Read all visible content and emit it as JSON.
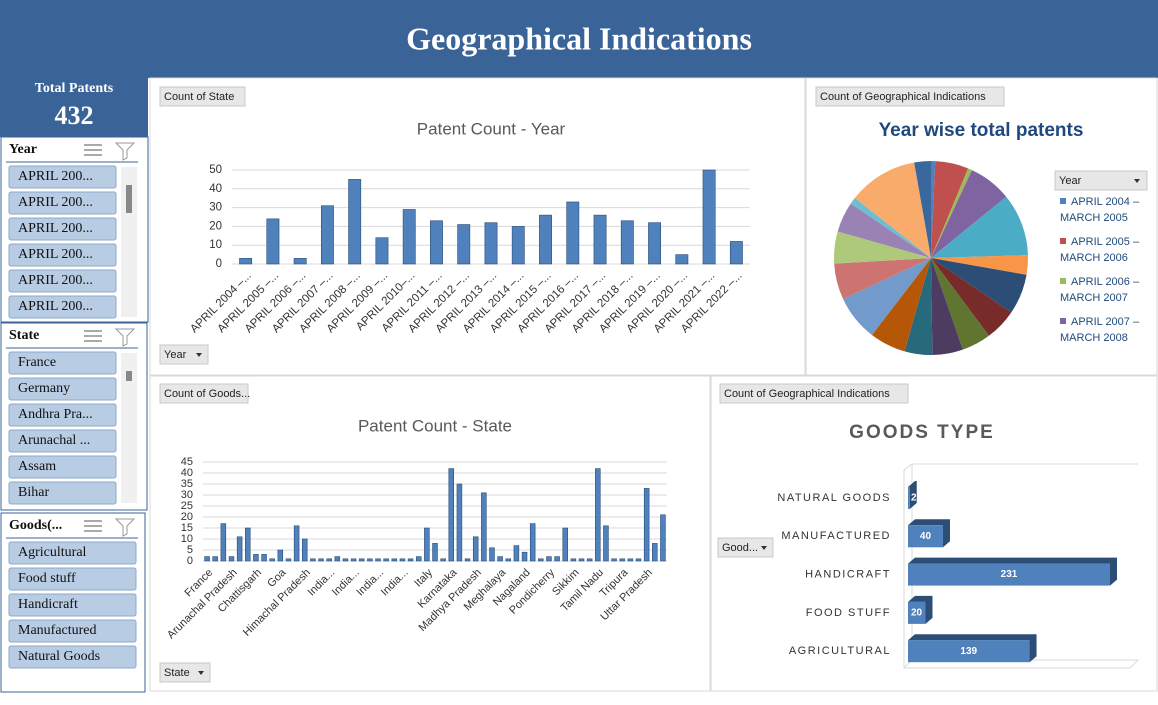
{
  "header": {
    "title": "Geographical Indications"
  },
  "kpi": {
    "label": "Total Patents",
    "value": 432
  },
  "slicers": [
    {
      "title": "Year",
      "items": [
        "APRIL 200...",
        "APRIL 200...",
        "APRIL 200...",
        "APRIL 200...",
        "APRIL 200...",
        "APRIL 200..."
      ]
    },
    {
      "title": "State",
      "items": [
        "France",
        "Germany",
        "Andhra Pra...",
        "Arunachal ...",
        "Assam",
        "Bihar"
      ]
    },
    {
      "title": "Goods(...",
      "items": [
        "Agricultural",
        "Food stuff",
        "Handicraft",
        "Manufactured",
        "Natural Goods"
      ]
    }
  ],
  "chart_data": [
    {
      "type": "bar",
      "button": "Count of State",
      "field_button": "Year",
      "title": "Patent Count - Year",
      "categories": [
        "APRIL 2004 –...",
        "APRIL 2005 –...",
        "APRIL 2006 –...",
        "APRIL 2007 –...",
        "APRIL 2008 –...",
        "APRIL 2009 –...",
        "APRIL 2010–...",
        "APRIL 2011 –...",
        "APRIL 2012 –...",
        "APRIL 2013 –...",
        "APRIL 2014 –...",
        "APRIL 2015 –...",
        "APRIL 2016 –...",
        "APRIL 2017 –...",
        "APRIL 2018 –...",
        "APRIL 2019 –...",
        "APRIL 2020 –...",
        "APRIL 2021 –...",
        "APRIL 2022 –..."
      ],
      "values": [
        3,
        24,
        3,
        31,
        45,
        14,
        29,
        23,
        21,
        22,
        20,
        26,
        33,
        26,
        23,
        22,
        5,
        50,
        12
      ],
      "color": "#4f81bd",
      "ylim": [
        0,
        50
      ],
      "yticks": [
        0,
        10,
        20,
        30,
        40,
        50
      ],
      "grid": true
    },
    {
      "type": "pie",
      "button": "Count of Geographical Indications",
      "title": "Year wise total patents",
      "legend_title": "Year",
      "values": [
        3,
        24,
        3,
        31,
        45,
        14,
        29,
        23,
        21,
        22,
        20,
        26,
        33,
        26,
        23,
        22,
        5,
        50,
        12
      ],
      "colors": [
        "#4f81bd",
        "#c0504d",
        "#9bbb59",
        "#8064a2",
        "#4bacc6",
        "#f79646",
        "#2c4d75",
        "#772c2a",
        "#5f7530",
        "#4d3b62",
        "#276a7c",
        "#b65708",
        "#729aca",
        "#cd7371",
        "#afc97a",
        "#9983b5",
        "#6fbdd1",
        "#f9ab6b",
        "#3a679c"
      ],
      "legend": [
        {
          "label": "APRIL 2004 – MARCH 2005",
          "color": "#4f81bd"
        },
        {
          "label": "APRIL 2005 – MARCH 2006",
          "color": "#c0504d"
        },
        {
          "label": "APRIL 2006 – MARCH 2007",
          "color": "#9bbb59"
        },
        {
          "label": "APRIL 2007 – MARCH 2008",
          "color": "#8064a2"
        }
      ]
    },
    {
      "type": "bar",
      "button": "Count of Goods...",
      "field_button": "State",
      "title": "Patent Count - State",
      "categories": [
        "France",
        null,
        null,
        "Arunachal Pradesh",
        null,
        null,
        "Chattisgarh",
        null,
        null,
        "Goa",
        null,
        null,
        "Himachal Pradesh",
        null,
        null,
        "India...",
        null,
        null,
        "India...",
        null,
        null,
        "India...",
        null,
        null,
        "India...",
        null,
        null,
        "Italy",
        null,
        null,
        "Karnataka",
        null,
        null,
        "Madhya Pradesh",
        null,
        null,
        "Meghalaya",
        null,
        null,
        "Nagaland",
        null,
        null,
        "Pondicherry",
        null,
        null,
        "Sikkim",
        null,
        null,
        "Tamil Nadu",
        null,
        null,
        "Tripura",
        null,
        null,
        "Uttar Pradesh",
        null,
        null
      ],
      "values": [
        2,
        2,
        17,
        2,
        11,
        15,
        3,
        3,
        1,
        5,
        1,
        16,
        10,
        1,
        1,
        1,
        2,
        1,
        1,
        1,
        1,
        1,
        1,
        1,
        1,
        1,
        2,
        15,
        8,
        1,
        42,
        35,
        1,
        11,
        31,
        6,
        2,
        1,
        7,
        4,
        17,
        1,
        2,
        2,
        15,
        1,
        1,
        1,
        42,
        16,
        1,
        1,
        1,
        1,
        33,
        8,
        21
      ],
      "color": "#4f81bd",
      "ylim": [
        0,
        45
      ],
      "yticks": [
        0,
        5,
        10,
        15,
        20,
        25,
        30,
        35,
        40,
        45
      ],
      "grid": true
    },
    {
      "type": "barh",
      "button": "Count of Geographical Indications",
      "field_button": "Good...",
      "title": "GOODS TYPE",
      "categories": [
        "NATURAL GOODS",
        "MANUFACTURED",
        "HANDICRAFT",
        "FOOD STUFF",
        "AGRICULTURAL"
      ],
      "values": [
        2,
        40,
        231,
        20,
        139
      ],
      "color": "#4f81bd"
    }
  ]
}
